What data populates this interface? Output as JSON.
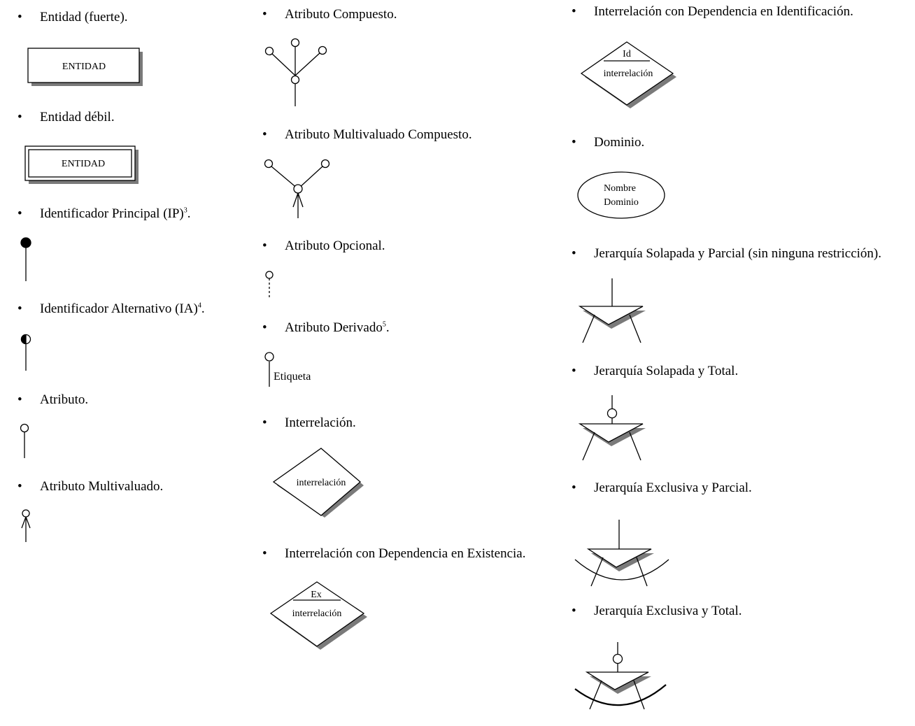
{
  "legend_items": [
    {
      "text": "Entidad (fuerte)."
    },
    {
      "text": "Entidad débil."
    },
    {
      "text": "Identificador Principal (IP)",
      "sup": "3",
      "suffix": "."
    },
    {
      "text": "Identificador Alternativo (IA)",
      "sup": "4",
      "suffix": "."
    },
    {
      "text": "Atributo."
    },
    {
      "text": "Atributo Multivaluado."
    },
    {
      "text": "Atributo Compuesto."
    },
    {
      "text": "Atributo Multivaluado Compuesto."
    },
    {
      "text": "Atributo Opcional."
    },
    {
      "text": "Atributo Derivado",
      "sup": "5",
      "suffix": "."
    },
    {
      "text": "Interrelación."
    },
    {
      "text": "Interrelación con Dependencia en Existencia."
    },
    {
      "text": "Interrelación con Dependencia en Identificación."
    },
    {
      "text": "Dominio."
    },
    {
      "text": "Jerarquía Solapada y Parcial (sin ninguna restricción)."
    },
    {
      "text": "Jerarquía Solapada y Total."
    },
    {
      "text": "Jerarquía Exclusiva y Parcial."
    },
    {
      "text": "Jerarquía Exclusiva y Total."
    }
  ],
  "bullet_symbol": "•",
  "diagram_labels": {
    "entity_strong": "ENTIDAD",
    "entity_weak": "ENTIDAD",
    "derived_tag": "Etiqueta",
    "relationship": "interrelación",
    "existence_tag": "Ex",
    "existence_relationship": "interrelación",
    "identification_tag": "Id",
    "identification_relationship": "interrelación",
    "domain_line1": "Nombre",
    "domain_line2": "Dominio"
  },
  "colors": {
    "stroke": "#000000",
    "shadow": "#7a7a7a",
    "background": "#ffffff"
  }
}
